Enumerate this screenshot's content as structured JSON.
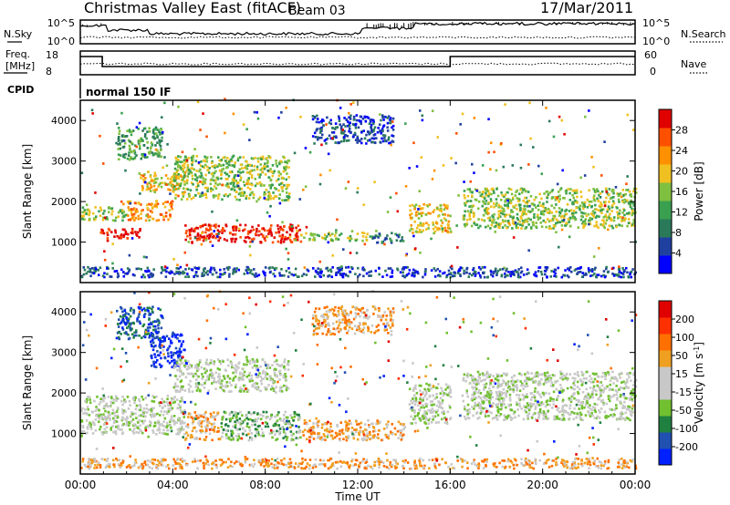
{
  "header": {
    "station": "Christmas Valley East (fitACF)",
    "beam": "Beam 03",
    "date": "17/Mar/2011"
  },
  "summary_panels": {
    "nsky_label": "N.Sky",
    "nsky_ticks": [
      "10^5",
      "10^0"
    ],
    "nsearch_label": "N.Search",
    "nsearch_ticks": [
      "10^5",
      "10^0"
    ],
    "freq_label_1": "Freq.",
    "freq_label_2": "[MHz]",
    "freq_ticks": [
      "18",
      "8"
    ],
    "nave_label": "Nave",
    "nave_ticks": [
      "60",
      "0"
    ],
    "cpid_label": "CPID",
    "cpid_value": "normal 150 IF"
  },
  "x_axis": {
    "label": "Time UT",
    "ticks": [
      "00:00",
      "04:00",
      "08:00",
      "12:00",
      "16:00",
      "20:00",
      "00:00"
    ]
  },
  "colors": {
    "power_scale": [
      "#0000ff",
      "#2040a0",
      "#2a7a5a",
      "#3aa050",
      "#80c040",
      "#f0c020",
      "#ff9000",
      "#ff5000",
      "#e00000"
    ],
    "velocity_scale": [
      "#0020ff",
      "#2050b0",
      "#208040",
      "#70c030",
      "#c8c8c8",
      "#c8c8c8",
      "#f0a020",
      "#ff7000",
      "#ff3000",
      "#e00000"
    ]
  },
  "chart_data": [
    {
      "type": "heatmap",
      "name": "power",
      "ylabel": "Slant Range [km]",
      "yticks": [
        1000,
        2000,
        3000,
        4000
      ],
      "ylim": [
        0,
        4500
      ],
      "xlim_hours": [
        0,
        24
      ],
      "colorbar_label": "Power [dB]",
      "colorbar_ticks": [
        "28",
        "24",
        "20",
        "16",
        "12",
        "8",
        "4"
      ],
      "regions": [
        {
          "t0": 0.0,
          "t1": 2.0,
          "r0": 1500,
          "r1": 1850,
          "level": 4
        },
        {
          "t0": 0.8,
          "t1": 2.6,
          "r0": 1050,
          "r1": 1300,
          "level": 8
        },
        {
          "t0": 2.0,
          "t1": 4.0,
          "r0": 1500,
          "r1": 2000,
          "level": 6
        },
        {
          "t0": 2.5,
          "t1": 4.5,
          "r0": 2200,
          "r1": 2700,
          "level": 5
        },
        {
          "t0": 4.0,
          "t1": 9.0,
          "r0": 2000,
          "r1": 3100,
          "level": 4
        },
        {
          "t0": 1.5,
          "t1": 3.5,
          "r0": 3000,
          "r1": 3800,
          "level": 3
        },
        {
          "t0": 4.5,
          "t1": 9.5,
          "r0": 950,
          "r1": 1400,
          "level": 8
        },
        {
          "t0": 9.5,
          "t1": 12.5,
          "r0": 1000,
          "r1": 1200,
          "level": 4
        },
        {
          "t0": 12.5,
          "t1": 14.0,
          "r0": 950,
          "r1": 1200,
          "level": 2
        },
        {
          "t0": 10.0,
          "t1": 13.5,
          "r0": 3400,
          "r1": 4100,
          "level": 1
        },
        {
          "t0": 14.2,
          "t1": 16.0,
          "r0": 1200,
          "r1": 1900,
          "level": 5
        },
        {
          "t0": 16.5,
          "t1": 24.0,
          "r0": 1300,
          "r1": 2300,
          "level": 4
        },
        {
          "t0": 0.0,
          "t1": 24.0,
          "r0": 100,
          "r1": 350,
          "level": 1
        }
      ]
    },
    {
      "type": "heatmap",
      "name": "velocity",
      "ylabel": "Slant Range [km]",
      "yticks": [
        1000,
        2000,
        3000,
        4000
      ],
      "ylim": [
        0,
        4500
      ],
      "xlim_hours": [
        0,
        24
      ],
      "colorbar_label": "Velocity [m s^-1]",
      "colorbar_ticks": [
        "200",
        "100",
        "50",
        "15",
        "-15",
        "-50",
        "-100",
        "-200"
      ],
      "regions": [
        {
          "t0": 0.0,
          "t1": 4.5,
          "r0": 950,
          "r1": 1900,
          "level": 4
        },
        {
          "t0": 3.0,
          "t1": 4.5,
          "r0": 2600,
          "r1": 3500,
          "level": 0
        },
        {
          "t0": 1.5,
          "t1": 3.5,
          "r0": 3300,
          "r1": 4100,
          "level": 1
        },
        {
          "t0": 4.0,
          "t1": 9.0,
          "r0": 2000,
          "r1": 2800,
          "level": 4
        },
        {
          "t0": 4.5,
          "t1": 6.0,
          "r0": 800,
          "r1": 1500,
          "level": 6
        },
        {
          "t0": 6.0,
          "t1": 9.5,
          "r0": 800,
          "r1": 1500,
          "level": 3
        },
        {
          "t0": 9.5,
          "t1": 14.0,
          "r0": 800,
          "r1": 1300,
          "level": 6
        },
        {
          "t0": 10.0,
          "t1": 13.5,
          "r0": 3400,
          "r1": 4100,
          "level": 6
        },
        {
          "t0": 14.2,
          "t1": 16.0,
          "r0": 1200,
          "r1": 2200,
          "level": 4
        },
        {
          "t0": 16.5,
          "t1": 24.0,
          "r0": 1300,
          "r1": 2500,
          "level": 4
        },
        {
          "t0": 0.0,
          "t1": 24.0,
          "r0": 100,
          "r1": 350,
          "level": 6
        }
      ]
    }
  ]
}
